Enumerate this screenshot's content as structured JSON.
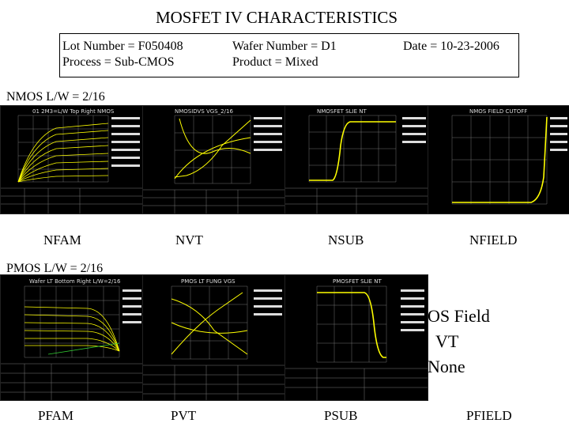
{
  "title": "MOSFET IV CHARACTERISTICS",
  "info": {
    "lot_number": "Lot Number = F050408",
    "process": "Process = Sub-CMOS",
    "wafer_number": "Wafer Number = D1",
    "product": "Product =  Mixed",
    "date": "Date = 10-23-2006"
  },
  "nmos": {
    "label": "NMOS L/W = 2/16",
    "captions": [
      "NFAM",
      "NVT",
      "NSUB",
      "NFIELD"
    ],
    "panel_titles": [
      "01 2M3=L/W Top Right NMOS",
      "NMOSIDVS VGS_2/16",
      "NMOSFET SLIE NT",
      "NMOS FIELD CUTOFF"
    ]
  },
  "pmos": {
    "label": "PMOS L/W = 2/16",
    "captions": [
      "PFAM",
      "PVT",
      "PSUB",
      "PFIELD"
    ],
    "panel_titles": [
      "Wafer LT Bottom Right L/W=2/16",
      "PMOS LT FUNG VGS",
      "PMOSFET SLIE NT"
    ],
    "field_lines": [
      "OS Field",
      "VT",
      "None"
    ]
  },
  "colors": {
    "trace": "#ffff00",
    "panel_bg": "#000000",
    "grid": "#8a8a8a"
  }
}
